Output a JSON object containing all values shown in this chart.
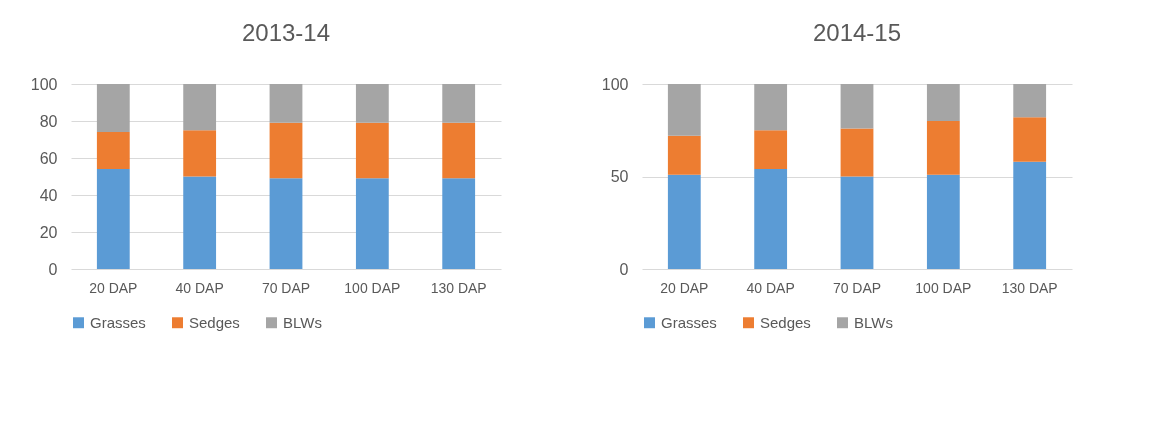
{
  "chart_data": [
    {
      "type": "bar",
      "title": "2013-14",
      "stacked": true,
      "categories": [
        "20 DAP",
        "40 DAP",
        "70 DAP",
        "100 DAP",
        "130 DAP"
      ],
      "series": [
        {
          "name": "Grasses",
          "color": "#5b9bd5",
          "values": [
            54,
            50,
            49,
            49,
            49
          ]
        },
        {
          "name": "Sedges",
          "color": "#ed7d31",
          "values": [
            20,
            25,
            30,
            30,
            30
          ]
        },
        {
          "name": "BLWs",
          "color": "#a5a5a5",
          "values": [
            26,
            25,
            21,
            21,
            21
          ]
        }
      ],
      "ylim": [
        0,
        100
      ],
      "yticks": [
        0,
        20,
        40,
        60,
        80,
        100
      ],
      "grid": "y",
      "legend": "bottom"
    },
    {
      "type": "bar",
      "title": "2014-15",
      "stacked": true,
      "categories": [
        "20 DAP",
        "40 DAP",
        "70 DAP",
        "100 DAP",
        "130 DAP"
      ],
      "series": [
        {
          "name": "Grasses",
          "color": "#5b9bd5",
          "values": [
            51,
            54,
            50,
            51,
            58
          ]
        },
        {
          "name": "Sedges",
          "color": "#ed7d31",
          "values": [
            21,
            21,
            26,
            29,
            24
          ]
        },
        {
          "name": "BLWs",
          "color": "#a5a5a5",
          "values": [
            28,
            25,
            24,
            20,
            18
          ]
        }
      ],
      "ylim": [
        0,
        100
      ],
      "yticks": [
        0,
        50,
        100
      ],
      "grid": "y",
      "legend": "bottom"
    }
  ]
}
